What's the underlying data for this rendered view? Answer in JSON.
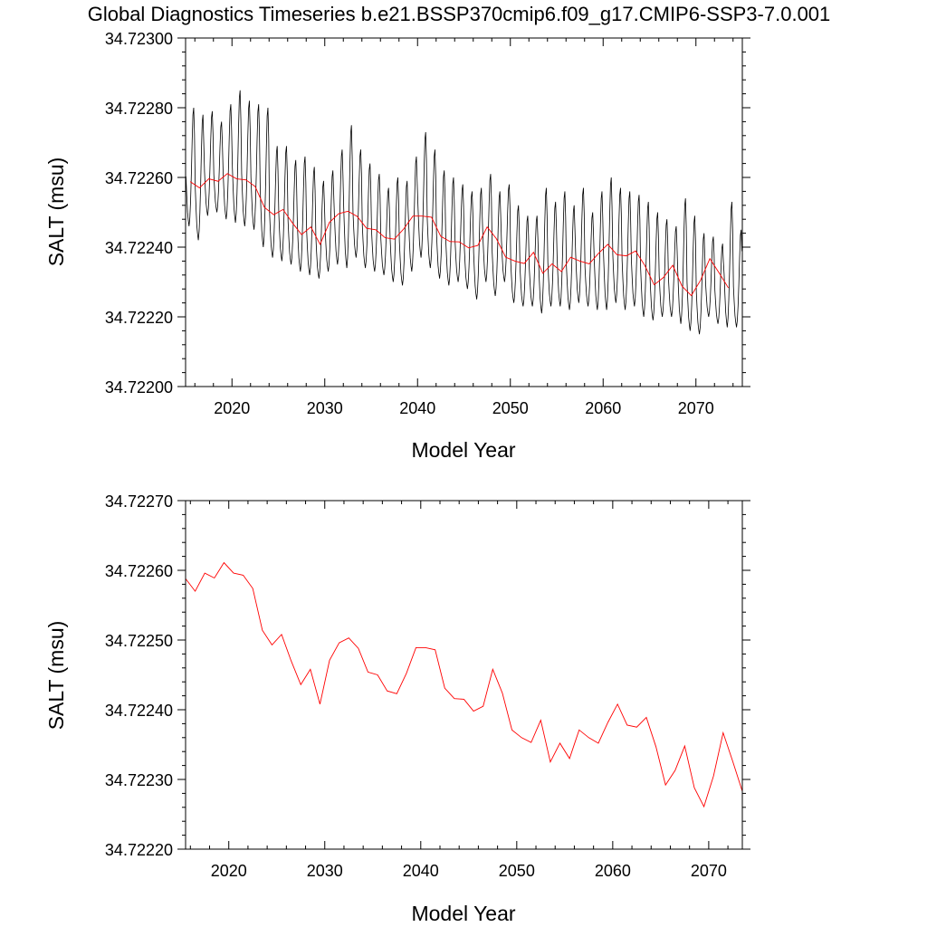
{
  "title": "Global Diagnostics Timeseries b.e21.BSSP370cmip6.f09_g17.CMIP6-SSP3-7.0.001",
  "colors": {
    "monthly": "#000000",
    "annual": "#ff0000",
    "frame": "#000000",
    "background": "#ffffff"
  },
  "chart_data": [
    {
      "type": "line",
      "panel": "top",
      "xlabel": "Model Year",
      "ylabel": "SALT (msu)",
      "xlim": [
        2015,
        2075
      ],
      "ylim": [
        34.722,
        34.723
      ],
      "xticks": [
        2020,
        2030,
        2040,
        2050,
        2060,
        2070
      ],
      "yticks": [
        34.722,
        34.7222,
        34.7224,
        34.7226,
        34.7228,
        34.723
      ],
      "ytick_labels": [
        "34.72200",
        "34.72220",
        "34.72240",
        "34.72260",
        "34.72280",
        "34.72300"
      ],
      "grid": false,
      "legend": "none",
      "monthly_series": {
        "years": [
          2015,
          2016,
          2017,
          2018,
          2019,
          2020,
          2021,
          2022,
          2023,
          2024,
          2025,
          2026,
          2027,
          2028,
          2029,
          2030,
          2031,
          2032,
          2033,
          2034,
          2035,
          2036,
          2037,
          2038,
          2039,
          2040,
          2041,
          2042,
          2043,
          2044,
          2045,
          2046,
          2047,
          2048,
          2049,
          2050,
          2051,
          2052,
          2053,
          2054,
          2055,
          2056,
          2057,
          2058,
          2059,
          2060,
          2061,
          2062,
          2063,
          2064,
          2065,
          2066,
          2067,
          2068,
          2069,
          2070,
          2071,
          2072,
          2073,
          2074
        ],
        "max": [
          34.7228,
          34.72278,
          34.72279,
          34.72276,
          34.72281,
          34.72285,
          34.72282,
          34.72281,
          34.7228,
          34.72269,
          34.72269,
          34.72265,
          34.72266,
          34.72263,
          34.72259,
          34.72262,
          34.72268,
          34.72275,
          34.72268,
          34.72264,
          34.72261,
          34.72257,
          34.7226,
          34.72259,
          34.72266,
          34.72273,
          34.72268,
          34.72262,
          34.7226,
          34.72258,
          34.72256,
          34.72257,
          34.72261,
          34.72256,
          34.72258,
          34.72252,
          34.72249,
          34.72249,
          34.72257,
          34.72253,
          34.72256,
          34.72252,
          34.72257,
          34.7225,
          34.72256,
          34.7226,
          34.72257,
          34.72256,
          34.72255,
          34.72253,
          34.7225,
          34.72248,
          34.72246,
          34.72254,
          34.72249,
          34.72244,
          34.72243,
          34.72241,
          34.72253,
          34.72245
        ],
        "min": [
          34.72246,
          34.72242,
          34.72249,
          34.7225,
          34.72248,
          34.72247,
          34.72246,
          34.72245,
          34.7224,
          34.72237,
          34.72236,
          34.72235,
          34.72233,
          34.72232,
          34.72231,
          34.72233,
          34.72235,
          34.72234,
          34.72237,
          34.72234,
          34.72233,
          34.72232,
          34.7223,
          34.72229,
          34.72233,
          34.72237,
          34.72234,
          34.72231,
          34.72229,
          34.7223,
          34.72228,
          34.72225,
          34.7223,
          34.72226,
          34.7223,
          34.72224,
          34.72223,
          34.72223,
          34.72221,
          34.72223,
          34.72223,
          34.72222,
          34.72224,
          34.72223,
          34.72222,
          34.72222,
          34.72224,
          34.72222,
          34.72223,
          34.7222,
          34.72219,
          34.7222,
          34.7222,
          34.72218,
          34.72216,
          34.72215,
          34.7222,
          34.72218,
          34.72217,
          34.72217
        ]
      },
      "annual_series": {
        "x": [
          2015.5,
          2016.5,
          2017.5,
          2018.5,
          2019.5,
          2020.5,
          2021.5,
          2022.5,
          2023.5,
          2024.5,
          2025.5,
          2026.5,
          2027.5,
          2028.5,
          2029.5,
          2030.5,
          2031.5,
          2032.5,
          2033.5,
          2034.5,
          2035.5,
          2036.5,
          2037.5,
          2038.5,
          2039.5,
          2040.5,
          2041.5,
          2042.5,
          2043.5,
          2044.5,
          2045.5,
          2046.5,
          2047.5,
          2048.5,
          2049.5,
          2050.5,
          2051.5,
          2052.5,
          2053.5,
          2054.5,
          2055.5,
          2056.5,
          2057.5,
          2058.5,
          2059.5,
          2060.5,
          2061.5,
          2062.5,
          2063.5,
          2064.5,
          2065.5,
          2066.5,
          2067.5,
          2068.5,
          2069.5,
          2070.5,
          2071.5,
          2072.5,
          2073.5
        ],
        "y": [
          34.722588,
          34.72257,
          34.722596,
          34.722589,
          34.722611,
          34.722596,
          34.722593,
          34.722574,
          34.722514,
          34.722493,
          34.722508,
          34.72247,
          34.722436,
          34.722458,
          34.722408,
          34.722471,
          34.722496,
          34.722503,
          34.722488,
          34.722454,
          34.72245,
          34.722427,
          34.722423,
          34.722452,
          34.722489,
          34.722489,
          34.722486,
          34.722431,
          34.722416,
          34.722415,
          34.722398,
          34.722405,
          34.722458,
          34.722424,
          34.722371,
          34.72236,
          34.722353,
          34.722385,
          34.722325,
          34.722352,
          34.72233,
          34.722371,
          34.72236,
          34.722352,
          34.722382,
          34.722408,
          34.722378,
          34.722375,
          34.722389,
          34.722347,
          34.722292,
          34.722313,
          34.722348,
          34.722288,
          34.722261,
          34.722305,
          34.722367,
          34.722326,
          34.722283
        ]
      }
    },
    {
      "type": "line",
      "panel": "bottom",
      "xlabel": "Model Year",
      "ylabel": "SALT (msu)",
      "xlim": [
        2015.5,
        2073.5
      ],
      "ylim": [
        34.7222,
        34.7227
      ],
      "xticks": [
        2020,
        2030,
        2040,
        2050,
        2060,
        2070
      ],
      "yticks": [
        34.7222,
        34.7223,
        34.7224,
        34.7225,
        34.7226,
        34.7227
      ],
      "ytick_labels": [
        "34.72220",
        "34.72230",
        "34.72240",
        "34.72250",
        "34.72260",
        "34.72270"
      ],
      "grid": false,
      "legend": "none",
      "annual_series": {
        "x": [
          2015.5,
          2016.5,
          2017.5,
          2018.5,
          2019.5,
          2020.5,
          2021.5,
          2022.5,
          2023.5,
          2024.5,
          2025.5,
          2026.5,
          2027.5,
          2028.5,
          2029.5,
          2030.5,
          2031.5,
          2032.5,
          2033.5,
          2034.5,
          2035.5,
          2036.5,
          2037.5,
          2038.5,
          2039.5,
          2040.5,
          2041.5,
          2042.5,
          2043.5,
          2044.5,
          2045.5,
          2046.5,
          2047.5,
          2048.5,
          2049.5,
          2050.5,
          2051.5,
          2052.5,
          2053.5,
          2054.5,
          2055.5,
          2056.5,
          2057.5,
          2058.5,
          2059.5,
          2060.5,
          2061.5,
          2062.5,
          2063.5,
          2064.5,
          2065.5,
          2066.5,
          2067.5,
          2068.5,
          2069.5,
          2070.5,
          2071.5,
          2072.5,
          2073.5
        ],
        "y": [
          34.722588,
          34.72257,
          34.722596,
          34.722589,
          34.722611,
          34.722596,
          34.722593,
          34.722574,
          34.722514,
          34.722493,
          34.722508,
          34.72247,
          34.722436,
          34.722458,
          34.722408,
          34.722471,
          34.722496,
          34.722503,
          34.722488,
          34.722454,
          34.72245,
          34.722427,
          34.722423,
          34.722452,
          34.722489,
          34.722489,
          34.722486,
          34.722431,
          34.722416,
          34.722415,
          34.722398,
          34.722405,
          34.722458,
          34.722424,
          34.722371,
          34.72236,
          34.722353,
          34.722385,
          34.722325,
          34.722352,
          34.72233,
          34.722371,
          34.72236,
          34.722352,
          34.722382,
          34.722408,
          34.722378,
          34.722375,
          34.722389,
          34.722347,
          34.722292,
          34.722313,
          34.722348,
          34.722288,
          34.722261,
          34.722305,
          34.722367,
          34.722326,
          34.722283
        ]
      }
    }
  ]
}
